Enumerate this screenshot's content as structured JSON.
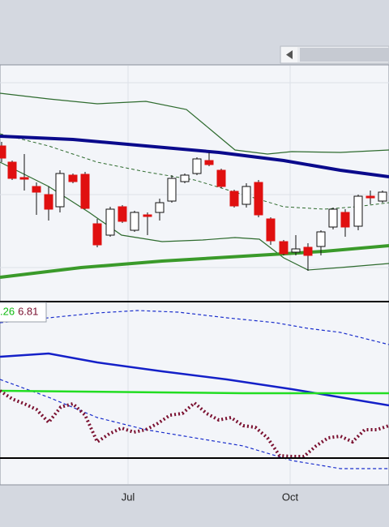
{
  "chart_data": {
    "type": "candlestick",
    "xlim": [
      0,
      480
    ],
    "xticks": [
      {
        "value": 158,
        "label": "Jul"
      },
      {
        "value": 358,
        "label": "Oct"
      }
    ],
    "ylim": [
      0,
      290
    ],
    "up_color": "#ffffff",
    "down_color": "#e01010",
    "x": [
      2,
      15,
      30,
      45,
      60,
      74,
      90,
      105,
      120,
      136,
      151,
      166,
      182,
      197,
      212,
      228,
      243,
      258,
      273,
      289,
      304,
      319,
      334,
      350,
      365,
      380,
      396,
      411,
      426,
      442,
      457,
      472
    ],
    "open": [
      190,
      170,
      151,
      140,
      130,
      115,
      154,
      155,
      94,
      80,
      115,
      86,
      105,
      108,
      122,
      146,
      156,
      172,
      160,
      134,
      118,
      145,
      100,
      72,
      59,
      65,
      66,
      90,
      108,
      91,
      128,
      122
    ],
    "high": [
      195,
      172,
      180,
      145,
      140,
      160,
      156,
      158,
      100,
      115,
      117,
      110,
      108,
      125,
      154,
      156,
      176,
      182,
      162,
      136,
      144,
      148,
      102,
      74,
      80,
      70,
      86,
      114,
      112,
      130,
      135,
      135
    ],
    "low": [
      170,
      148,
      135,
      105,
      98,
      108,
      144,
      112,
      65,
      78,
      95,
      84,
      80,
      98,
      120,
      144,
      154,
      165,
      138,
      114,
      114,
      102,
      68,
      55,
      55,
      36,
      55,
      87,
      78,
      86,
      118,
      120
    ],
    "close": [
      175,
      150,
      149,
      133,
      112,
      156,
      146,
      113,
      68,
      112,
      97,
      108,
      103,
      120,
      150,
      154,
      174,
      167,
      140,
      116,
      140,
      105,
      73,
      57,
      63,
      55,
      84,
      112,
      90,
      128,
      126,
      133
    ],
    "overlays": [
      {
        "color": "#2e6b2e",
        "width": 1.2,
        "x": [
          0,
          60,
          120,
          180,
          230,
          260,
          290,
          330,
          360,
          420,
          480
        ],
        "values": [
          255,
          248,
          242,
          245,
          235,
          210,
          185,
          180,
          183,
          182,
          185
        ]
      },
      {
        "color": "#2e6b2e",
        "width": 1.2,
        "x": [
          0,
          60,
          110,
          150,
          200,
          250,
          290,
          320,
          350,
          380,
          420,
          480
        ],
        "values": [
          170,
          140,
          108,
          80,
          72,
          74,
          77,
          75,
          52,
          37,
          40,
          45
        ]
      },
      {
        "color": "#2e6b2e",
        "width": 1,
        "dash": "4 3",
        "x": [
          0,
          60,
          120,
          180,
          240,
          300,
          350,
          400,
          440,
          480
        ],
        "values": [
          205,
          190,
          170,
          158,
          148,
          130,
          115,
          112,
          115,
          120
        ]
      },
      {
        "color": "#0a0a8c",
        "width": 4,
        "x": [
          0,
          90,
          180,
          270,
          350,
          420,
          480
        ],
        "values": [
          202,
          198,
          190,
          182,
          172,
          160,
          152
        ]
      },
      {
        "color": "#3a9a2a",
        "width": 4,
        "x": [
          0,
          100,
          200,
          300,
          400,
          480
        ],
        "values": [
          28,
          40,
          48,
          54,
          60,
          67
        ]
      }
    ],
    "indicator": {
      "ylim": [
        -25,
        193
      ],
      "readouts": [
        {
          "text": ".26",
          "color": "#11bb11"
        },
        {
          "text": "6.81",
          "color": "#7a1030"
        }
      ],
      "series": [
        {
          "color": "#1a2ecc",
          "width": 1.2,
          "dash": "4 3",
          "x": [
            0,
            60,
            120,
            170,
            220,
            280,
            340,
            380,
            420,
            480
          ],
          "values": [
            167,
            173,
            179,
            182,
            180,
            173,
            167,
            160,
            155,
            140
          ]
        },
        {
          "color": "#1a2ecc",
          "width": 1.2,
          "dash": "4 3",
          "x": [
            0,
            60,
            120,
            180,
            240,
            300,
            360,
            420,
            480
          ],
          "values": [
            97,
            75,
            50,
            35,
            25,
            15,
            -3,
            -13,
            -13
          ]
        },
        {
          "color": "#1420c8",
          "width": 2.5,
          "x": [
            0,
            60,
            120,
            200,
            280,
            360,
            420,
            480
          ],
          "values": [
            125,
            129,
            118,
            107,
            97,
            85,
            75,
            65
          ]
        },
        {
          "color": "#22dd22",
          "width": 2.5,
          "x": [
            0,
            100,
            200,
            300,
            400,
            480
          ],
          "values": [
            83,
            82,
            81,
            80,
            80,
            80
          ]
        },
        {
          "color": "#7a1030",
          "width": 4,
          "dash": "2 3",
          "x": [
            0,
            15,
            30,
            45,
            60,
            75,
            90,
            105,
            120,
            135,
            150,
            165,
            180,
            195,
            210,
            225,
            240,
            255,
            270,
            285,
            300,
            315,
            330,
            345,
            360,
            375,
            390,
            405,
            420,
            435,
            450,
            465,
            480
          ],
          "values": [
            83,
            73,
            67,
            60,
            44,
            63,
            67,
            53,
            20,
            30,
            37,
            32,
            35,
            43,
            53,
            55,
            68,
            55,
            47,
            50,
            40,
            38,
            25,
            3,
            2,
            2,
            15,
            25,
            27,
            20,
            35,
            35,
            40
          ]
        }
      ]
    }
  }
}
